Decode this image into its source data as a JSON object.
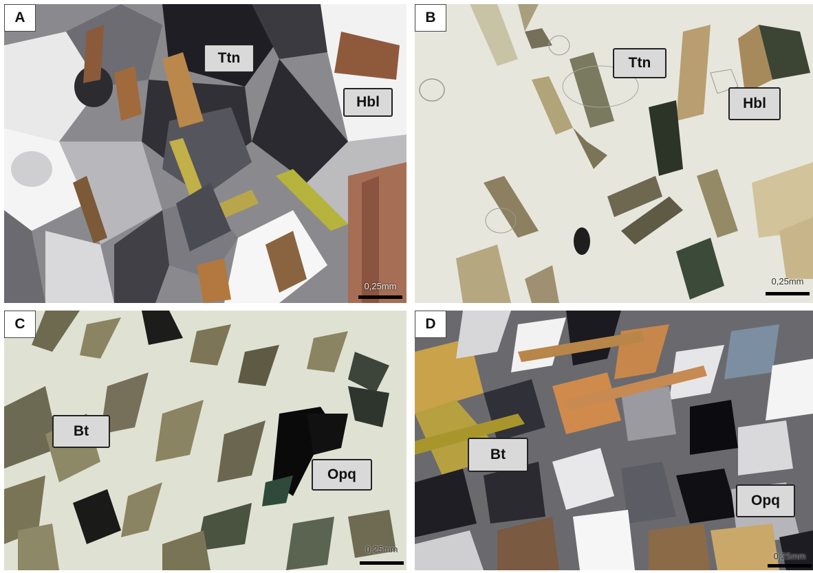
{
  "panels": [
    {
      "letter": "A",
      "labels": [
        "Ttn",
        "Hbl"
      ],
      "scale": "0,25mm"
    },
    {
      "letter": "B",
      "labels": [
        "Ttn",
        "Hbl"
      ],
      "scale": "0,25mm"
    },
    {
      "letter": "C",
      "labels": [
        "Bt",
        "Opq"
      ],
      "scale": "0,25mm"
    },
    {
      "letter": "D",
      "labels": [
        "Bt",
        "Opq"
      ],
      "scale": "0,25mm"
    }
  ]
}
